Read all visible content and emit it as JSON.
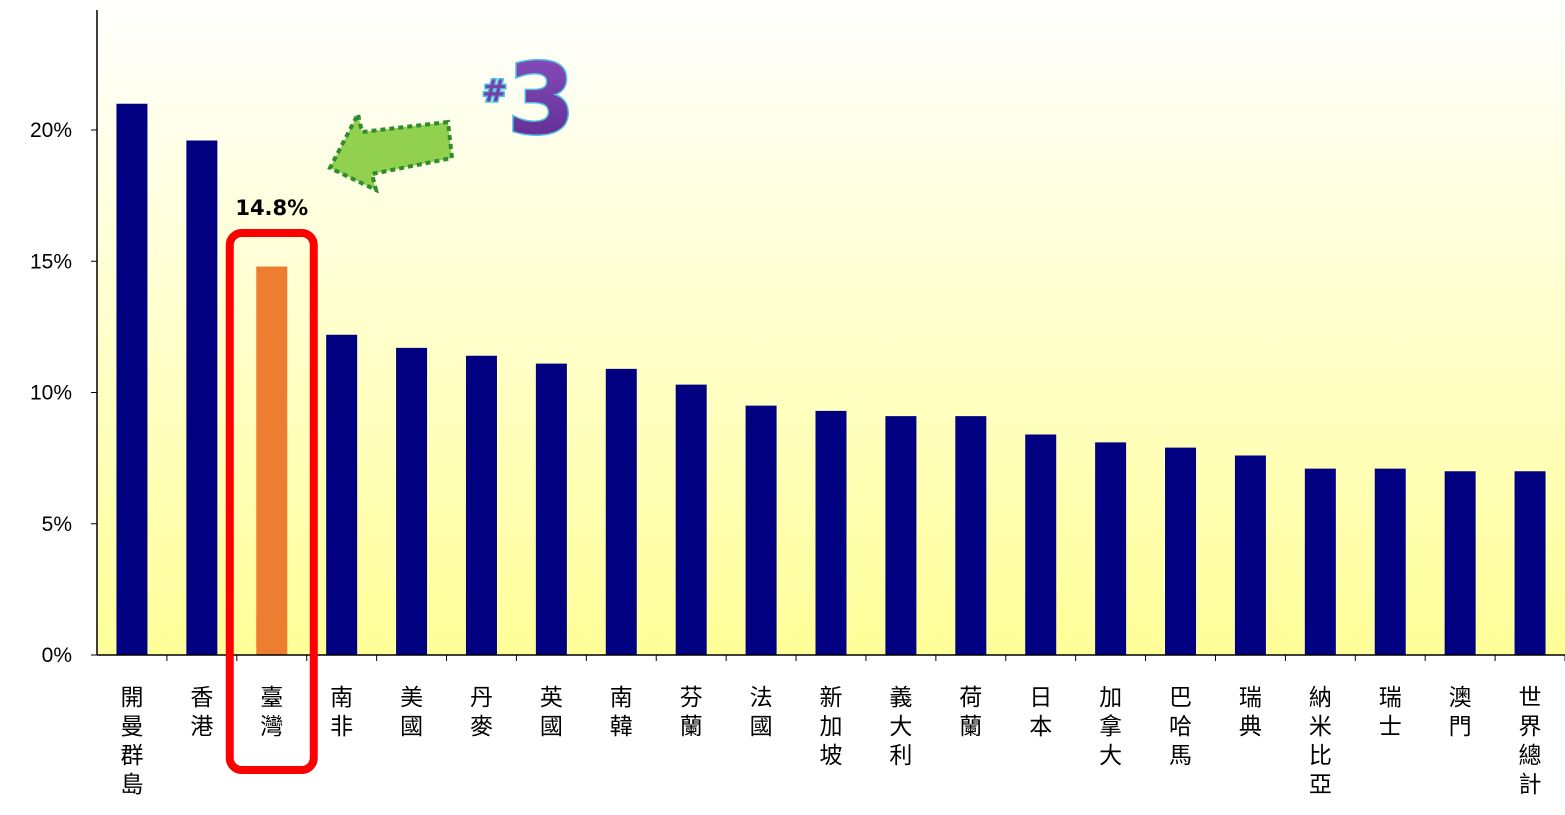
{
  "chart_data": {
    "type": "bar",
    "categories": [
      "開曼群島",
      "香港",
      "臺灣",
      "南非",
      "美國",
      "丹麥",
      "英國",
      "南韓",
      "芬蘭",
      "法國",
      "新加坡",
      "義大利",
      "荷蘭",
      "日本",
      "加拿大",
      "巴哈馬",
      "瑞典",
      "納米比亞",
      "瑞士",
      "澳門",
      "世界總計"
    ],
    "values": [
      21.0,
      19.6,
      14.8,
      12.2,
      11.7,
      11.4,
      11.1,
      10.9,
      10.3,
      9.5,
      9.3,
      9.1,
      9.1,
      8.4,
      8.1,
      7.9,
      7.6,
      7.1,
      7.1,
      7.0,
      7.0
    ],
    "highlight_index": 2,
    "highlight_label": "14.8%",
    "y_ticks": [
      "0%",
      "5%",
      "10%",
      "15%",
      "20%"
    ],
    "ylim": [
      0,
      24
    ],
    "rank_badge": "#3",
    "bar_color": "#000080",
    "highlight_color": "#ED7D31",
    "box_color": "#FF0000",
    "arrow_color": "#92D050",
    "background_gradient": [
      "#FFFFFF",
      "#FFFF99"
    ]
  }
}
